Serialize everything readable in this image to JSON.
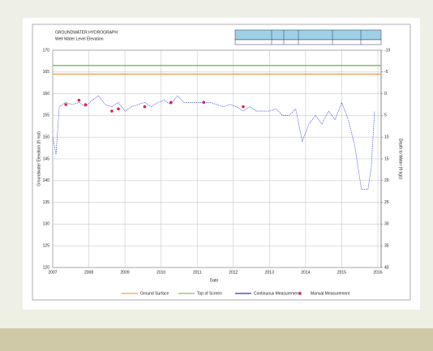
{
  "chart_data": {
    "type": "line",
    "title": "GROUNDWATER HYDROGRAPH",
    "subtitle": "Well Water Level Elevation",
    "x_label": "Date",
    "y_label": "Groundwater Elevation (ft msl)",
    "y2_label": "Depth to Water (ft bgs)",
    "x": [
      0,
      1,
      2,
      4,
      6,
      8,
      10,
      12,
      14,
      16,
      18,
      20,
      22,
      24,
      26,
      28,
      30,
      32,
      34,
      36,
      38,
      40,
      44,
      48,
      50,
      52,
      54,
      56,
      58,
      60,
      62,
      64,
      66,
      68,
      70,
      72,
      74,
      76,
      78,
      80,
      82,
      84,
      86,
      88,
      90,
      92,
      94,
      96,
      97,
      98
    ],
    "xlim": [
      0,
      100
    ],
    "xticks": [
      {
        "value": 0,
        "label": "2007"
      },
      {
        "value": 11,
        "label": "2008"
      },
      {
        "value": 22,
        "label": "2009"
      },
      {
        "value": 33,
        "label": "2010"
      },
      {
        "value": 44,
        "label": "2011"
      },
      {
        "value": 55,
        "label": "2012"
      },
      {
        "value": 66,
        "label": "2013"
      },
      {
        "value": 77,
        "label": "2014"
      },
      {
        "value": 88,
        "label": "2015"
      },
      {
        "value": 99,
        "label": "2016"
      }
    ],
    "ylim": [
      120,
      170
    ],
    "yticks": [
      120,
      125,
      130,
      135,
      140,
      145,
      150,
      155,
      160,
      165,
      170
    ],
    "y2lim": [
      -10,
      40
    ],
    "y2ticks": [
      -10,
      -5,
      0,
      5,
      10,
      15,
      20,
      25,
      30,
      35,
      40
    ],
    "grid": true,
    "series": [
      {
        "name": "Ground Surface",
        "color": "#f0a050",
        "style": "line",
        "x": [
          0,
          100
        ],
        "values": [
          164.5,
          164.5
        ]
      },
      {
        "name": "Top of Screen",
        "color": "#80c060",
        "style": "line",
        "x": [
          0,
          100
        ],
        "values": [
          166.5,
          166.5
        ]
      },
      {
        "name": "Continuous Measurement",
        "color": "#2233dd",
        "style": "dots",
        "values": [
          150,
          146,
          157,
          158,
          157.5,
          158,
          157,
          158.5,
          159.5,
          157.5,
          157,
          158,
          156,
          157,
          157.5,
          158,
          157,
          158,
          158.5,
          157.5,
          159.5,
          158,
          158,
          158,
          157.5,
          157,
          157.5,
          157,
          156,
          157,
          156,
          156,
          156,
          156.5,
          155,
          155,
          156.5,
          149,
          153,
          155,
          153,
          156,
          154,
          158,
          154,
          148,
          138,
          138,
          143,
          156
        ]
      },
      {
        "name": "Manual Measurement",
        "color": "#dd2244",
        "style": "points",
        "x": [
          4,
          8,
          10,
          18,
          20,
          28,
          36,
          46,
          58
        ],
        "values": [
          157.5,
          158.5,
          157.5,
          156,
          156.5,
          157,
          158,
          158,
          157
        ]
      }
    ],
    "legend": "bottom"
  }
}
